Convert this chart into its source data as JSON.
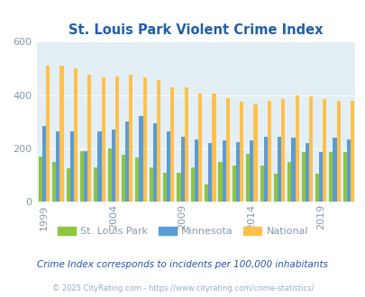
{
  "title": "St. Louis Park Violent Crime Index",
  "years": [
    1999,
    2000,
    2001,
    2002,
    2003,
    2004,
    2005,
    2006,
    2007,
    2008,
    2009,
    2010,
    2011,
    2012,
    2013,
    2014,
    2015,
    2016,
    2017,
    2018,
    2019,
    2020,
    2021
  ],
  "slp": [
    170,
    150,
    125,
    190,
    130,
    200,
    175,
    165,
    130,
    110,
    110,
    130,
    65,
    150,
    135,
    180,
    135,
    105,
    150,
    185,
    105,
    185,
    185
  ],
  "mn": [
    285,
    265,
    265,
    190,
    265,
    270,
    300,
    320,
    295,
    265,
    245,
    235,
    220,
    230,
    225,
    230,
    245,
    245,
    240,
    220,
    185,
    240,
    235
  ],
  "nat": [
    510,
    510,
    500,
    475,
    465,
    470,
    475,
    465,
    455,
    430,
    430,
    405,
    405,
    390,
    375,
    365,
    380,
    385,
    400,
    395,
    385,
    380,
    380
  ],
  "slp_color": "#8DC63F",
  "mn_color": "#5B9BD5",
  "nat_color": "#FFC04C",
  "plot_bg": "#E3EFF5",
  "ylim": [
    0,
    600
  ],
  "yticks": [
    0,
    200,
    400,
    600
  ],
  "xlabel_years": [
    1999,
    2004,
    2009,
    2014,
    2019
  ],
  "legend_labels": [
    "St. Louis Park",
    "Minnesota",
    "National"
  ],
  "footnote1": "Crime Index corresponds to incidents per 100,000 inhabitants",
  "footnote2": "© 2025 CityRating.com - https://www.cityrating.com/crime-statistics/",
  "title_color": "#2060A8",
  "tick_color": "#8899AA",
  "footnote1_color": "#2255AA",
  "footnote2_color": "#99AACC"
}
